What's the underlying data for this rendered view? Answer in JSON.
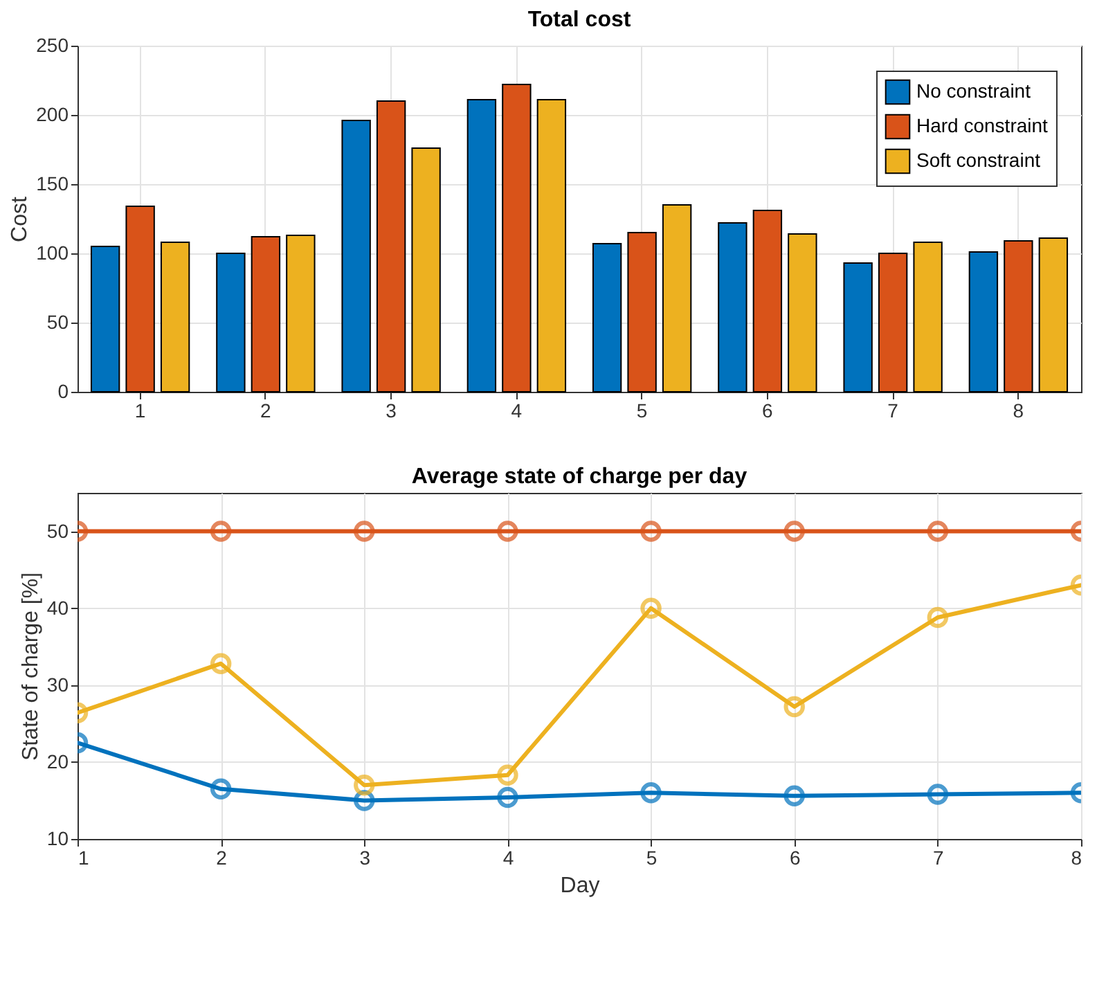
{
  "chart_data": [
    {
      "type": "bar",
      "title": "Total cost",
      "ylabel": "Cost",
      "categories": [
        "1",
        "2",
        "3",
        "4",
        "5",
        "6",
        "7",
        "8"
      ],
      "series": [
        {
          "name": "No constraint",
          "color": "#0072bd",
          "values": [
            105,
            100,
            196,
            211,
            107,
            122,
            93,
            101
          ]
        },
        {
          "name": "Hard constraint",
          "color": "#d95319",
          "values": [
            134,
            112,
            210,
            222,
            115,
            131,
            100,
            109
          ]
        },
        {
          "name": "Soft constraint",
          "color": "#edb120",
          "values": [
            108,
            113,
            176,
            211,
            135,
            114,
            108,
            111
          ]
        }
      ],
      "ylim": [
        0,
        250
      ],
      "yticks": [
        0,
        50,
        100,
        150,
        200,
        250
      ],
      "grid": true,
      "legend": "top right"
    },
    {
      "type": "line",
      "title": "Average state of charge per day",
      "xlabel": "Day",
      "ylabel": "State of charge [%]",
      "x": [
        1,
        2,
        3,
        4,
        5,
        6,
        7,
        8
      ],
      "series": [
        {
          "color": "#0072bd",
          "values": [
            22.5,
            16.5,
            15.0,
            15.4,
            16.0,
            15.6,
            15.8,
            16.0
          ]
        },
        {
          "color": "#d95319",
          "values": [
            50,
            50,
            50,
            50,
            50,
            50,
            50,
            50
          ]
        },
        {
          "color": "#edb120",
          "values": [
            26.4,
            32.8,
            17.0,
            18.3,
            40.0,
            27.2,
            38.8,
            43.0
          ]
        }
      ],
      "xlim": [
        1,
        8
      ],
      "xticks": [
        1,
        2,
        3,
        4,
        5,
        6,
        7,
        8
      ],
      "ylim": [
        10,
        55
      ],
      "yticks": [
        10,
        20,
        30,
        40,
        50
      ],
      "grid": true,
      "marker": "circle",
      "line_style": "solid",
      "legend": false
    }
  ]
}
